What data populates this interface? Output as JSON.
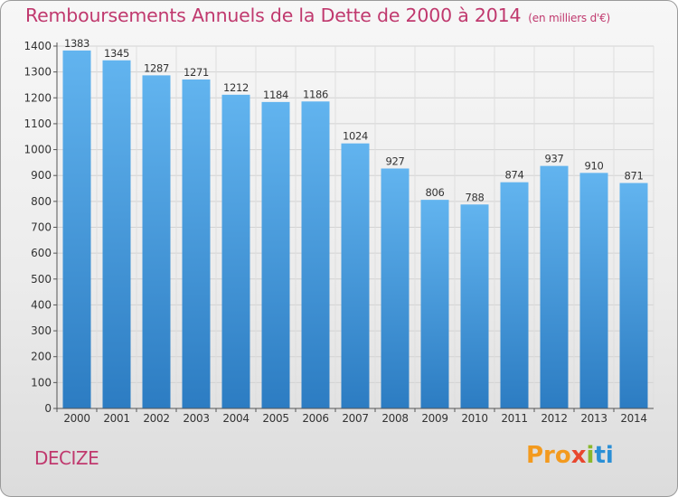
{
  "header": {
    "title": "Remboursements Annuels de la Dette de 2000 à 2014",
    "subtitle": "(en milliers d'€)"
  },
  "commune": "DECIZE",
  "logo": {
    "p1": "Pro",
    "p2": "x",
    "p3": "i",
    "p4": "ti"
  },
  "colors": {
    "accent": "#c0396e",
    "bar_light": "#5fb0ec",
    "bar_dark": "#2f7fc4"
  },
  "chart_data": {
    "type": "bar",
    "title": "Remboursements Annuels de la Dette de 2000 à 2014",
    "ylabel": "(en milliers d'€)",
    "xlabel": "",
    "categories": [
      "2000",
      "2001",
      "2002",
      "2003",
      "2004",
      "2005",
      "2006",
      "2007",
      "2008",
      "2009",
      "2010",
      "2011",
      "2012",
      "2013",
      "2014"
    ],
    "values": [
      1383,
      1345,
      1287,
      1271,
      1212,
      1184,
      1186,
      1024,
      927,
      806,
      788,
      874,
      937,
      910,
      871
    ],
    "ylim": [
      0,
      1400
    ],
    "yticks": [
      0,
      100,
      200,
      300,
      400,
      500,
      600,
      700,
      800,
      900,
      1000,
      1100,
      1200,
      1300,
      1400
    ],
    "grid": true
  }
}
